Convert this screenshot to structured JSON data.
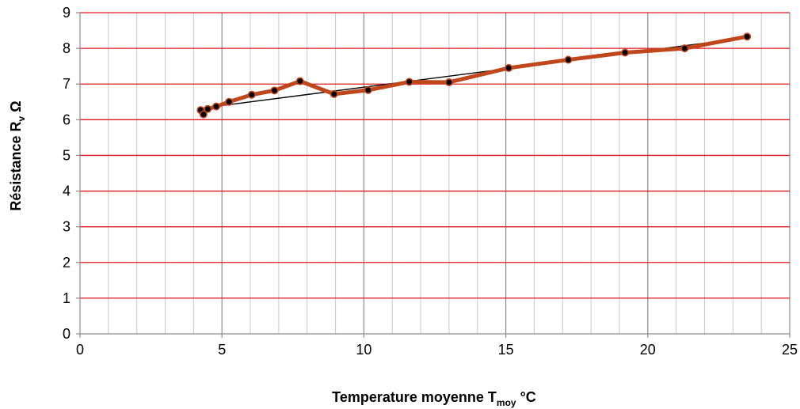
{
  "chart_data": {
    "type": "line",
    "title": "",
    "xlabel": {
      "main": "Temperature moyenne T",
      "sub": "moy",
      "unit": "°C"
    },
    "ylabel": {
      "main": "Résistance R",
      "sub": "v",
      "unit": "Ω"
    },
    "xlim": [
      0,
      25
    ],
    "ylim": [
      0,
      9
    ],
    "xticks": [
      0,
      5,
      10,
      15,
      20,
      25
    ],
    "yticks": [
      0,
      1,
      2,
      3,
      4,
      5,
      6,
      7,
      8,
      9
    ],
    "x_tick_labels": [
      "0",
      "5",
      "10",
      "15",
      "20",
      "25"
    ],
    "y_tick_labels": [
      "0",
      "1",
      "2",
      "3",
      "4",
      "5",
      "6",
      "7",
      "8",
      "9"
    ],
    "minor_x_step": 1,
    "grid": {
      "horizontal": true,
      "vertical_major": true,
      "vertical_minor": true
    },
    "legend": "none",
    "colors": {
      "series_line": "#c0461c",
      "marker": "#000000",
      "trend": "#000000",
      "horizontal_grid": "#e0141e",
      "vertical_major_grid": "#8c8c8c",
      "vertical_minor_grid": "#c8c8c8"
    },
    "series": [
      {
        "x": [
          4.25,
          4.35,
          4.5,
          4.8,
          5.25,
          6.05,
          6.85,
          7.75,
          8.95,
          10.15,
          11.6,
          13.0,
          15.1,
          17.2,
          19.2,
          21.3,
          23.5
        ],
        "y": [
          6.27,
          6.15,
          6.3,
          6.37,
          6.5,
          6.7,
          6.82,
          7.08,
          6.72,
          6.83,
          7.06,
          7.05,
          7.45,
          7.68,
          7.88,
          8.0,
          8.33
        ]
      }
    ],
    "trendline": {
      "type": "linear",
      "x": [
        4.25,
        23.5
      ],
      "y": [
        6.32,
        8.3
      ]
    }
  }
}
